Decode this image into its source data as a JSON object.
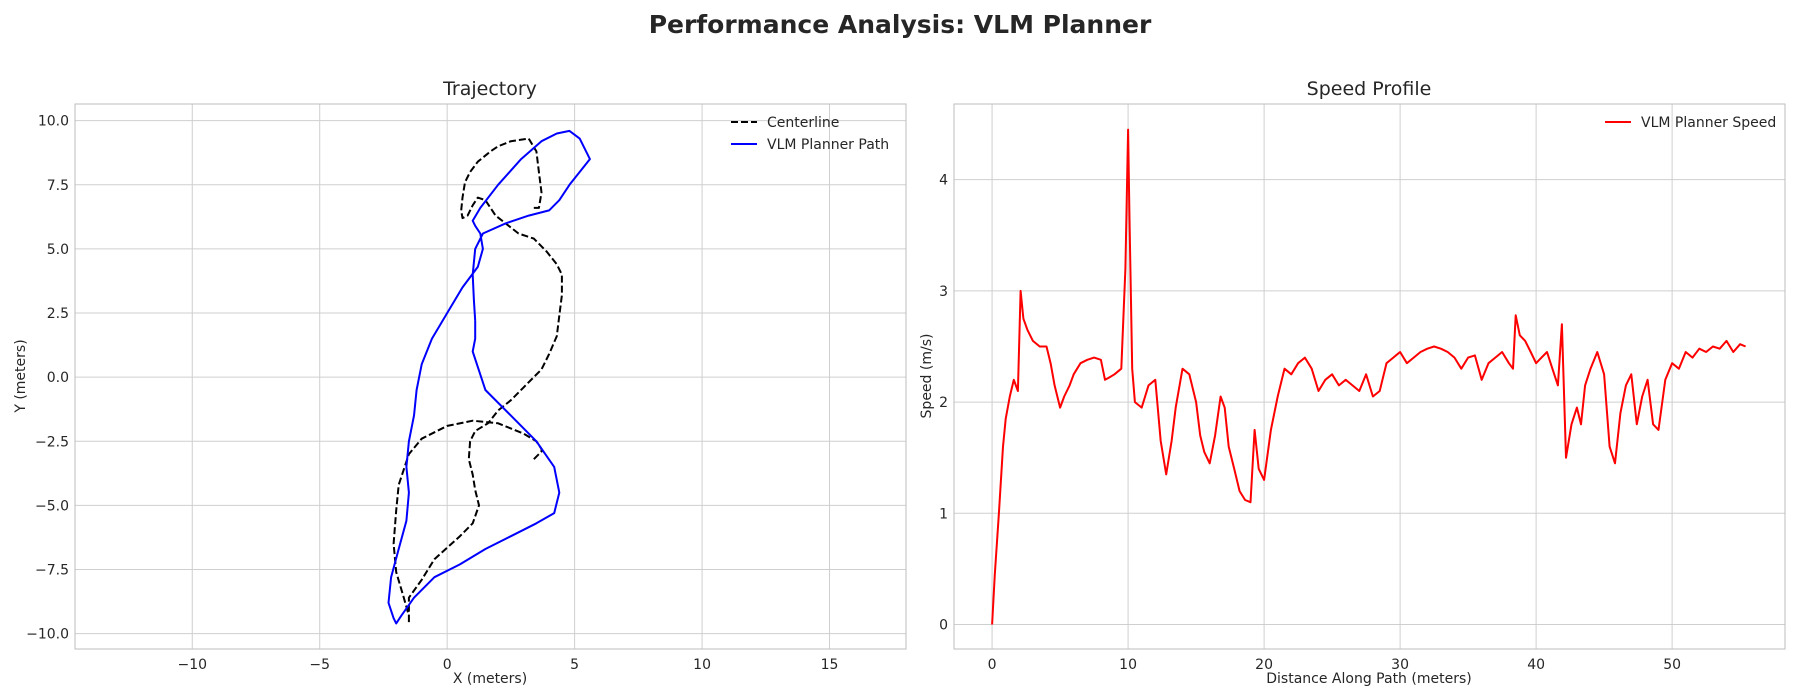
{
  "figure": {
    "suptitle": "Performance Analysis: VLM Planner"
  },
  "chart_data": [
    {
      "type": "line",
      "title": "Trajectory",
      "xlabel": "X (meters)",
      "ylabel": "Y (meters)",
      "xlim": [
        -14.6,
        18.0
      ],
      "ylim": [
        -10.6,
        10.65
      ],
      "xticks": [
        -10,
        -5,
        0,
        5,
        10,
        15
      ],
      "xtick_labels": [
        "−10",
        "−5",
        "0",
        "5",
        "10",
        "15"
      ],
      "yticks": [
        -10,
        -7.5,
        -5,
        -2.5,
        0,
        2.5,
        5,
        7.5,
        10
      ],
      "ytick_labels": [
        "−10.0",
        "−7.5",
        "−5.0",
        "−2.5",
        "0.0",
        "2.5",
        "5.0",
        "7.5",
        "10.0"
      ],
      "grid": true,
      "legend_position": "top-right",
      "series": [
        {
          "name": "Centerline",
          "color": "#000000",
          "style": "dashed",
          "x": [
            3.4,
            3.6,
            3.7,
            3.6,
            3.5,
            3.2,
            2.5,
            2.0,
            1.7,
            1.2,
            0.9,
            0.7,
            0.6,
            0.55,
            0.6,
            0.8,
            1.0,
            1.2,
            1.5,
            1.9,
            2.8,
            3.4,
            3.9,
            4.3,
            4.5,
            4.5,
            4.4,
            4.3,
            4.0,
            3.7,
            3.0,
            2.5,
            2.0,
            1.6,
            1.1,
            0.9,
            0.85,
            1.0,
            1.1,
            1.25,
            1.0,
            0.5,
            -0.5,
            -1.0,
            -1.5,
            -1.5,
            -1.5,
            -1.5,
            -1.5,
            -1.7,
            -2.0,
            -2.1,
            -2.0,
            -1.9,
            -1.5,
            -1.0,
            0.0,
            1.0,
            2.0,
            3.0,
            3.5,
            3.7,
            3.7,
            3.4
          ],
          "y": [
            6.6,
            6.6,
            7.2,
            8.0,
            8.8,
            9.3,
            9.2,
            9.0,
            8.8,
            8.4,
            8.0,
            7.6,
            7.0,
            6.5,
            6.2,
            6.3,
            6.7,
            7.0,
            6.9,
            6.3,
            5.6,
            5.4,
            4.9,
            4.4,
            4.0,
            3.2,
            2.4,
            1.6,
            0.9,
            0.3,
            -0.4,
            -0.9,
            -1.3,
            -1.8,
            -2.1,
            -2.5,
            -3.2,
            -3.8,
            -4.4,
            -5.0,
            -5.7,
            -6.2,
            -7.1,
            -7.9,
            -8.6,
            -9.1,
            -9.4,
            -9.6,
            -9.3,
            -8.6,
            -7.6,
            -6.5,
            -5.2,
            -4.2,
            -3.0,
            -2.4,
            -1.9,
            -1.7,
            -1.8,
            -2.2,
            -2.5,
            -2.8,
            -2.9,
            -3.2
          ]
        },
        {
          "name": "VLM Planner Path",
          "color": "#0000ff",
          "style": "solid",
          "x": [
            1.1,
            1.1,
            1.0,
            1.5,
            2.5,
            3.5,
            4.2,
            4.4,
            4.2,
            3.5,
            2.5,
            1.5,
            0.5,
            -0.5,
            -1.3,
            -1.8,
            -2.0,
            -2.1,
            -2.3,
            -2.2,
            -1.9,
            -1.6,
            -1.5,
            -1.6,
            -1.5,
            -1.3,
            -1.2,
            -1.0,
            -0.6,
            0.0,
            0.6,
            1.2,
            1.4,
            1.3,
            1.1,
            1.0,
            1.3,
            2.0,
            2.9,
            3.7,
            4.3,
            4.8,
            5.2,
            5.6,
            4.8,
            4.4,
            4.0,
            3.2,
            2.3,
            1.4,
            1.1,
            1.0,
            1.05,
            1.1
          ],
          "y": [
            2.2,
            1.5,
            1.0,
            -0.5,
            -1.5,
            -2.5,
            -3.5,
            -4.5,
            -5.3,
            -5.7,
            -6.2,
            -6.7,
            -7.3,
            -7.8,
            -8.6,
            -9.3,
            -9.6,
            -9.4,
            -8.8,
            -7.8,
            -6.7,
            -5.6,
            -4.5,
            -3.5,
            -2.5,
            -1.5,
            -0.5,
            0.5,
            1.5,
            2.5,
            3.5,
            4.3,
            5.0,
            5.6,
            5.9,
            6.1,
            6.6,
            7.5,
            8.5,
            9.2,
            9.5,
            9.6,
            9.3,
            8.5,
            7.5,
            6.9,
            6.5,
            6.3,
            6.0,
            5.6,
            5.0,
            4.0,
            3.0,
            2.2
          ]
        }
      ]
    },
    {
      "type": "line",
      "title": "Speed Profile",
      "xlabel": "Distance Along Path (meters)",
      "ylabel": "Speed (m/s)",
      "xlim": [
        -2.8,
        58.3
      ],
      "ylim": [
        -0.22,
        4.68
      ],
      "xticks": [
        0,
        10,
        20,
        30,
        40,
        50
      ],
      "xtick_labels": [
        "0",
        "10",
        "20",
        "30",
        "40",
        "50"
      ],
      "yticks": [
        0,
        1,
        2,
        3,
        4
      ],
      "ytick_labels": [
        "0",
        "1",
        "2",
        "3",
        "4"
      ],
      "grid": true,
      "legend_position": "top-right",
      "series": [
        {
          "name": "VLM Planner Speed",
          "color": "#ff0000",
          "style": "solid",
          "x": [
            0,
            0.2,
            0.5,
            0.8,
            1.0,
            1.3,
            1.6,
            1.9,
            2.1,
            2.3,
            2.6,
            3.0,
            3.5,
            4.0,
            4.3,
            4.6,
            5.0,
            5.3,
            5.7,
            6.0,
            6.5,
            7.0,
            7.5,
            8.0,
            8.3,
            8.6,
            9.0,
            9.5,
            9.8,
            10.0,
            10.1,
            10.3,
            10.5,
            11.0,
            11.5,
            12.0,
            12.4,
            12.8,
            13.2,
            13.5,
            14.0,
            14.5,
            15.0,
            15.3,
            15.6,
            16.0,
            16.4,
            16.8,
            17.1,
            17.4,
            17.8,
            18.2,
            18.6,
            19.0,
            19.3,
            19.6,
            20.0,
            20.5,
            21.0,
            21.5,
            22.0,
            22.5,
            23.0,
            23.5,
            24.0,
            24.5,
            25.0,
            25.5,
            26.0,
            26.5,
            27.0,
            27.5,
            28.0,
            28.5,
            29.0,
            29.5,
            30.0,
            30.5,
            31.0,
            31.5,
            32.0,
            32.5,
            33.0,
            33.5,
            34.0,
            34.5,
            35.0,
            35.5,
            36.0,
            36.5,
            37.0,
            37.5,
            38.0,
            38.3,
            38.5,
            38.8,
            39.2,
            39.6,
            40.0,
            40.4,
            40.8,
            41.2,
            41.6,
            41.9,
            42.2,
            42.6,
            43.0,
            43.3,
            43.6,
            44.0,
            44.5,
            45.0,
            45.4,
            45.8,
            46.2,
            46.6,
            47.0,
            47.4,
            47.8,
            48.2,
            48.6,
            49.0,
            49.5,
            50.0,
            50.5,
            51.0,
            51.5,
            52.0,
            52.5,
            53.0,
            53.5,
            54.0,
            54.5,
            55.0,
            55.4
          ],
          "y": [
            0.0,
            0.45,
            1.0,
            1.6,
            1.85,
            2.05,
            2.2,
            2.1,
            3.0,
            2.75,
            2.65,
            2.55,
            2.5,
            2.5,
            2.35,
            2.15,
            1.95,
            2.05,
            2.15,
            2.25,
            2.35,
            2.38,
            2.4,
            2.38,
            2.2,
            2.22,
            2.25,
            2.3,
            3.2,
            4.45,
            3.7,
            2.3,
            2.0,
            1.95,
            2.15,
            2.2,
            1.65,
            1.35,
            1.65,
            1.95,
            2.3,
            2.25,
            2.0,
            1.7,
            1.55,
            1.45,
            1.7,
            2.05,
            1.95,
            1.6,
            1.4,
            1.2,
            1.12,
            1.1,
            1.75,
            1.4,
            1.3,
            1.75,
            2.05,
            2.3,
            2.25,
            2.35,
            2.4,
            2.3,
            2.1,
            2.2,
            2.25,
            2.15,
            2.2,
            2.15,
            2.1,
            2.25,
            2.05,
            2.1,
            2.35,
            2.4,
            2.45,
            2.35,
            2.4,
            2.45,
            2.48,
            2.5,
            2.48,
            2.45,
            2.4,
            2.3,
            2.4,
            2.42,
            2.2,
            2.35,
            2.4,
            2.45,
            2.35,
            2.3,
            2.78,
            2.6,
            2.55,
            2.45,
            2.35,
            2.4,
            2.45,
            2.3,
            2.15,
            2.7,
            1.5,
            1.8,
            1.95,
            1.8,
            2.15,
            2.3,
            2.45,
            2.25,
            1.6,
            1.45,
            1.9,
            2.15,
            2.25,
            1.8,
            2.05,
            2.2,
            1.8,
            1.75,
            2.2,
            2.35,
            2.3,
            2.45,
            2.4,
            2.48,
            2.45,
            2.5,
            2.48,
            2.55,
            2.45,
            2.52,
            2.5
          ]
        }
      ]
    }
  ]
}
